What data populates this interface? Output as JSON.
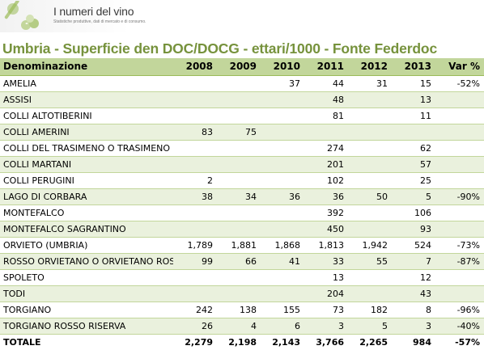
{
  "logo": {
    "name": "I numeri del vino",
    "tagline": "Statistiche produttive, dati di mercato e di consumo."
  },
  "title": "Umbria - Superficie den DOC/DOCG - ettari/1000 - Fonte Federdoc",
  "colors": {
    "title": "#76923c",
    "header_bg": "#c2d69b",
    "band_bg": "#eaf1dd",
    "rule": "#c2d69b"
  },
  "table": {
    "headers": [
      "Denominazione",
      "2008",
      "2009",
      "2010",
      "2011",
      "2012",
      "2013",
      "Var %"
    ],
    "rows": [
      [
        "AMELIA",
        "",
        "",
        "37",
        "44",
        "31",
        "15",
        "-52%"
      ],
      [
        "ASSISI",
        "",
        "",
        "",
        "48",
        "",
        "13",
        ""
      ],
      [
        "COLLI ALTOTIBERINI",
        "",
        "",
        "",
        "81",
        "",
        "11",
        ""
      ],
      [
        "COLLI AMERINI",
        "83",
        "75",
        "",
        "",
        "",
        "",
        ""
      ],
      [
        "COLLI DEL  TRASIMENO  O  TRASIMENO",
        "",
        "",
        "",
        "274",
        "",
        "62",
        ""
      ],
      [
        "COLLI MARTANI",
        "",
        "",
        "",
        "201",
        "",
        "57",
        ""
      ],
      [
        "COLLI PERUGINI",
        "2",
        "",
        "",
        "102",
        "",
        "25",
        ""
      ],
      [
        "LAGO DI CORBARA",
        "38",
        "34",
        "36",
        "36",
        "50",
        "5",
        "-90%"
      ],
      [
        "MONTEFALCO",
        "",
        "",
        "",
        "392",
        "",
        "106",
        ""
      ],
      [
        "MONTEFALCO SAGRANTINO",
        "",
        "",
        "",
        "450",
        "",
        "93",
        ""
      ],
      [
        "ORVIETO  (UMBRIA)",
        "1,789",
        "1,881",
        "1,868",
        "1,813",
        "1,942",
        "524",
        "-73%"
      ],
      [
        "ROSSO ORVIETANO O ORVIETANO ROSSO",
        "99",
        "66",
        "41",
        "33",
        "55",
        "7",
        "-87%"
      ],
      [
        "SPOLETO",
        "",
        "",
        "",
        "13",
        "",
        "12",
        ""
      ],
      [
        "TODI",
        "",
        "",
        "",
        "204",
        "",
        "43",
        ""
      ],
      [
        "TORGIANO",
        "242",
        "138",
        "155",
        "73",
        "182",
        "8",
        "-96%"
      ],
      [
        "TORGIANO ROSSO RISERVA",
        "26",
        "4",
        "6",
        "3",
        "5",
        "3",
        "-40%"
      ]
    ],
    "total": [
      "TOTALE",
      "2,279",
      "2,198",
      "2,143",
      "3,766",
      "2,265",
      "984",
      "-57%"
    ]
  }
}
